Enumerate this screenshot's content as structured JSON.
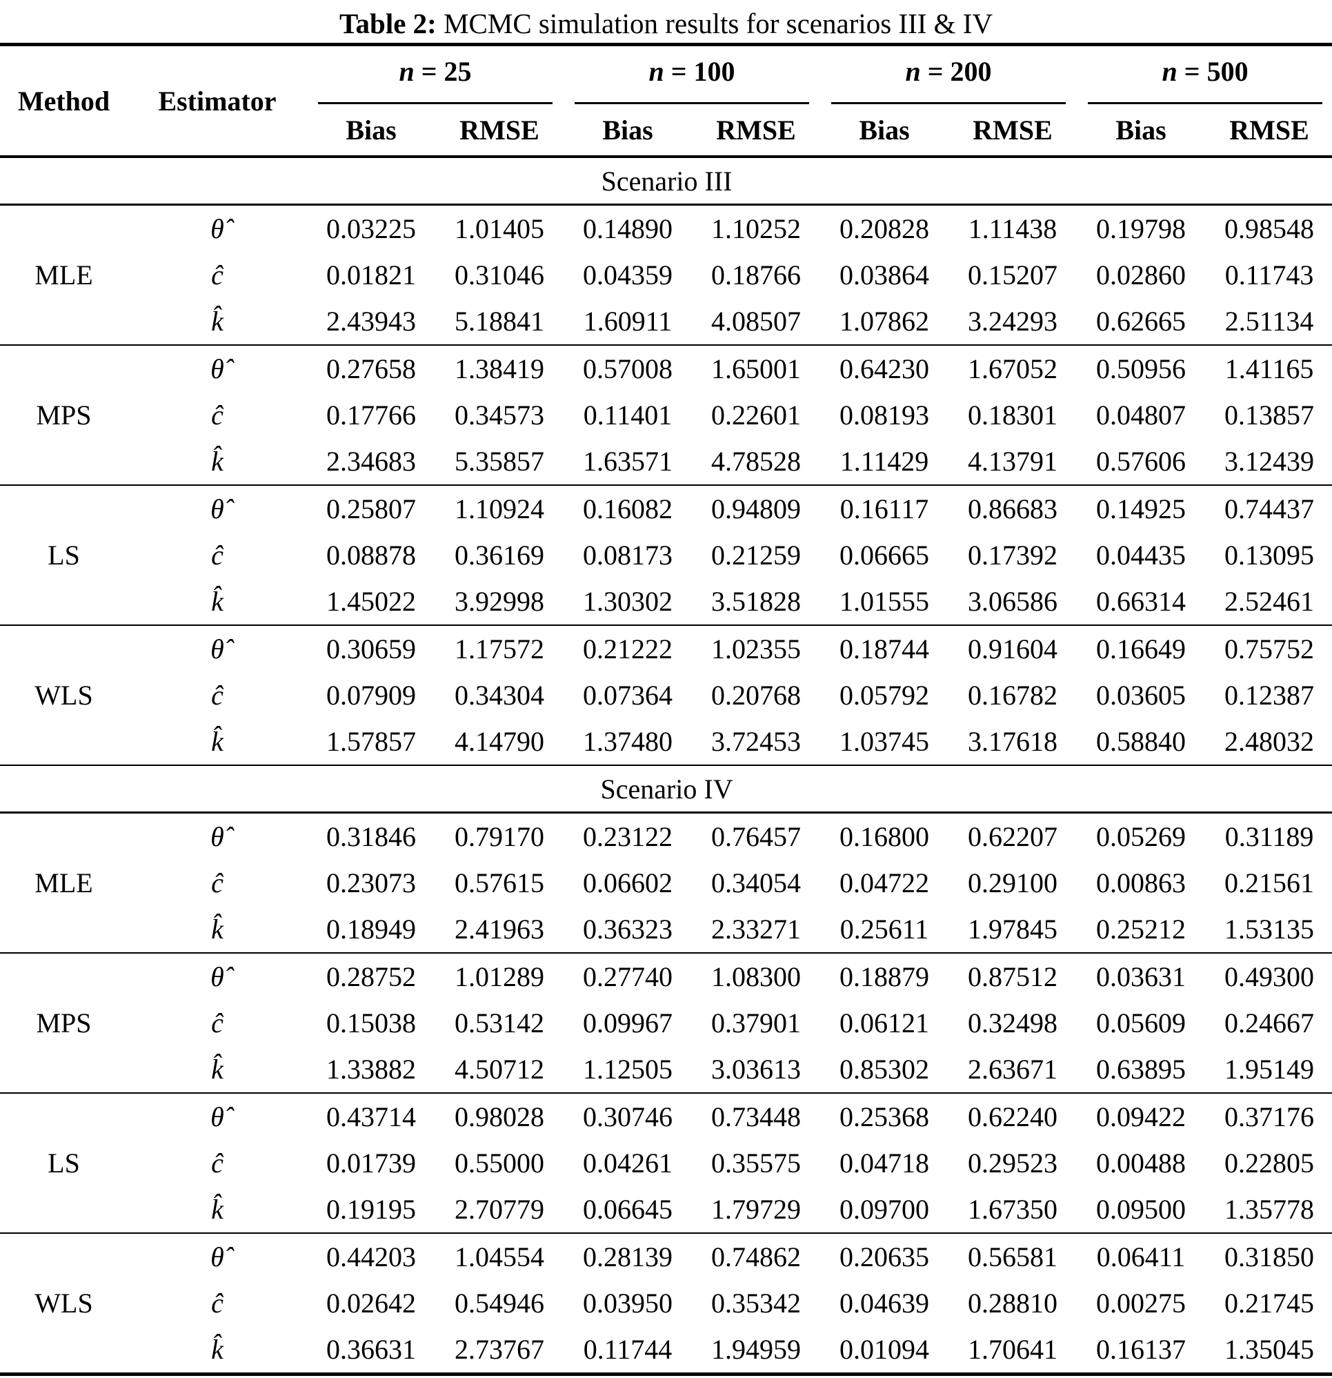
{
  "caption": {
    "label": "Table 2:",
    "text": " MCMC simulation results for scenarios III & IV"
  },
  "header": {
    "method": "Method",
    "estimator": "Estimator",
    "groups": [
      {
        "var": "n",
        "rest": " = 25"
      },
      {
        "var": "n",
        "rest": " = 100"
      },
      {
        "var": "n",
        "rest": " = 200"
      },
      {
        "var": "n",
        "rest": " = 500"
      }
    ],
    "subheaders": [
      "Bias",
      "RMSE",
      "Bias",
      "RMSE",
      "Bias",
      "RMSE",
      "Bias",
      "RMSE"
    ]
  },
  "estimator_symbols": [
    "θ̂",
    "ĉ",
    "k̂"
  ],
  "sections": [
    {
      "label": "Scenario III",
      "methods": [
        {
          "name": "MLE",
          "rows": [
            {
              "estimator": "θ̂",
              "values": [
                "0.03225",
                "1.01405",
                "0.14890",
                "1.10252",
                "0.20828",
                "1.11438",
                "0.19798",
                "0.98548"
              ]
            },
            {
              "estimator": "ĉ",
              "values": [
                "0.01821",
                "0.31046",
                "0.04359",
                "0.18766",
                "0.03864",
                "0.15207",
                "0.02860",
                "0.11743"
              ]
            },
            {
              "estimator": "k̂",
              "values": [
                "2.43943",
                "5.18841",
                "1.60911",
                "4.08507",
                "1.07862",
                "3.24293",
                "0.62665",
                "2.51134"
              ]
            }
          ]
        },
        {
          "name": "MPS",
          "rows": [
            {
              "estimator": "θ̂",
              "values": [
                "0.27658",
                "1.38419",
                "0.57008",
                "1.65001",
                "0.64230",
                "1.67052",
                "0.50956",
                "1.41165"
              ]
            },
            {
              "estimator": "ĉ",
              "values": [
                "0.17766",
                "0.34573",
                "0.11401",
                "0.22601",
                "0.08193",
                "0.18301",
                "0.04807",
                "0.13857"
              ]
            },
            {
              "estimator": "k̂",
              "values": [
                "2.34683",
                "5.35857",
                "1.63571",
                "4.78528",
                "1.11429",
                "4.13791",
                "0.57606",
                "3.12439"
              ]
            }
          ]
        },
        {
          "name": "LS",
          "rows": [
            {
              "estimator": "θ̂",
              "values": [
                "0.25807",
                "1.10924",
                "0.16082",
                "0.94809",
                "0.16117",
                "0.86683",
                "0.14925",
                "0.74437"
              ]
            },
            {
              "estimator": "ĉ",
              "values": [
                "0.08878",
                "0.36169",
                "0.08173",
                "0.21259",
                "0.06665",
                "0.17392",
                "0.04435",
                "0.13095"
              ]
            },
            {
              "estimator": "k̂",
              "values": [
                "1.45022",
                "3.92998",
                "1.30302",
                "3.51828",
                "1.01555",
                "3.06586",
                "0.66314",
                "2.52461"
              ]
            }
          ]
        },
        {
          "name": "WLS",
          "rows": [
            {
              "estimator": "θ̂",
              "values": [
                "0.30659",
                "1.17572",
                "0.21222",
                "1.02355",
                "0.18744",
                "0.91604",
                "0.16649",
                "0.75752"
              ]
            },
            {
              "estimator": "ĉ",
              "values": [
                "0.07909",
                "0.34304",
                "0.07364",
                "0.20768",
                "0.05792",
                "0.16782",
                "0.03605",
                "0.12387"
              ]
            },
            {
              "estimator": "k̂",
              "values": [
                "1.57857",
                "4.14790",
                "1.37480",
                "3.72453",
                "1.03745",
                "3.17618",
                "0.58840",
                "2.48032"
              ]
            }
          ]
        }
      ]
    },
    {
      "label": "Scenario IV",
      "methods": [
        {
          "name": "MLE",
          "rows": [
            {
              "estimator": "θ̂",
              "values": [
                "0.31846",
                "0.79170",
                "0.23122",
                "0.76457",
                "0.16800",
                "0.62207",
                "0.05269",
                "0.31189"
              ]
            },
            {
              "estimator": "ĉ",
              "values": [
                "0.23073",
                "0.57615",
                "0.06602",
                "0.34054",
                "0.04722",
                "0.29100",
                "0.00863",
                "0.21561"
              ]
            },
            {
              "estimator": "k̂",
              "values": [
                "0.18949",
                "2.41963",
                "0.36323",
                "2.33271",
                "0.25611",
                "1.97845",
                "0.25212",
                "1.53135"
              ]
            }
          ]
        },
        {
          "name": "MPS",
          "rows": [
            {
              "estimator": "θ̂",
              "values": [
                "0.28752",
                "1.01289",
                "0.27740",
                "1.08300",
                "0.18879",
                "0.87512",
                "0.03631",
                "0.49300"
              ]
            },
            {
              "estimator": "ĉ",
              "values": [
                "0.15038",
                "0.53142",
                "0.09967",
                "0.37901",
                "0.06121",
                "0.32498",
                "0.05609",
                "0.24667"
              ]
            },
            {
              "estimator": "k̂",
              "values": [
                "1.33882",
                "4.50712",
                "1.12505",
                "3.03613",
                "0.85302",
                "2.63671",
                "0.63895",
                "1.95149"
              ]
            }
          ]
        },
        {
          "name": "LS",
          "rows": [
            {
              "estimator": "θ̂",
              "values": [
                "0.43714",
                "0.98028",
                "0.30746",
                "0.73448",
                "0.25368",
                "0.62240",
                "0.09422",
                "0.37176"
              ]
            },
            {
              "estimator": "ĉ",
              "values": [
                "0.01739",
                "0.55000",
                "0.04261",
                "0.35575",
                "0.04718",
                "0.29523",
                "0.00488",
                "0.22805"
              ]
            },
            {
              "estimator": "k̂",
              "values": [
                "0.19195",
                "2.70779",
                "0.06645",
                "1.79729",
                "0.09700",
                "1.67350",
                "0.09500",
                "1.35778"
              ]
            }
          ]
        },
        {
          "name": "WLS",
          "rows": [
            {
              "estimator": "θ̂",
              "values": [
                "0.44203",
                "1.04554",
                "0.28139",
                "0.74862",
                "0.20635",
                "0.56581",
                "0.06411",
                "0.31850"
              ]
            },
            {
              "estimator": "ĉ",
              "values": [
                "0.02642",
                "0.54946",
                "0.03950",
                "0.35342",
                "0.04639",
                "0.28810",
                "0.00275",
                "0.21745"
              ]
            },
            {
              "estimator": "k̂",
              "values": [
                "0.36631",
                "2.73767",
                "0.11744",
                "1.94959",
                "0.01094",
                "1.70641",
                "0.16137",
                "1.35045"
              ]
            }
          ]
        }
      ]
    }
  ]
}
